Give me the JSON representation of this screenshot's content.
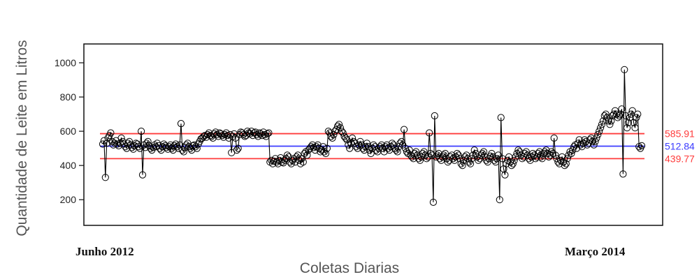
{
  "chart_data": {
    "type": "line",
    "title": "",
    "xlabel": "Coletas Diarias",
    "ylabel": "Quantidade de Leite em Litros",
    "x_range_labels": [
      "Junho 2012",
      "Março 2014"
    ],
    "yticks": [
      200,
      400,
      600,
      800,
      1000
    ],
    "ylim": [
      50,
      1110
    ],
    "grid": false,
    "series": [
      {
        "color": "#000000",
        "marker": "open-circle",
        "values": [
          525,
          545,
          330,
          530,
          560,
          575,
          590,
          540,
          520,
          530,
          545,
          525,
          515,
          530,
          560,
          540,
          525,
          510,
          500,
          530,
          540,
          520,
          505,
          495,
          515,
          530,
          525,
          510,
          500,
          600,
          345,
          520,
          505,
          530,
          540,
          515,
          500,
          490,
          505,
          520,
          510,
          530,
          515,
          500,
          490,
          510,
          525,
          515,
          505,
          495,
          510,
          520,
          500,
          490,
          515,
          525,
          510,
          500,
          520,
          645,
          490,
          480,
          505,
          520,
          530,
          510,
          500,
          490,
          515,
          520,
          510,
          500,
          525,
          540,
          555,
          560,
          570,
          575,
          565,
          580,
          590,
          575,
          570,
          560,
          585,
          595,
          580,
          570,
          590,
          585,
          575,
          565,
          580,
          590,
          575,
          560,
          580,
          475,
          570,
          585,
          560,
          490,
          500,
          580,
          595,
          590,
          580,
          570,
          575,
          600,
          590,
          585,
          600,
          575,
          590,
          595,
          580,
          570,
          590,
          585,
          575,
          595,
          580,
          570,
          585,
          590,
          420,
          430,
          410,
          425,
          440,
          420,
          410,
          430,
          445,
          420,
          415,
          430,
          440,
          460,
          450,
          420,
          410,
          430,
          440,
          420,
          450,
          460,
          430,
          410,
          440,
          420,
          470,
          480,
          460,
          490,
          500,
          510,
          520,
          505,
          490,
          510,
          520,
          500,
          480,
          490,
          510,
          480,
          470,
          500,
          600,
          590,
          570,
          560,
          580,
          600,
          610,
          630,
          640,
          620,
          600,
          590,
          570,
          560,
          550,
          520,
          500,
          530,
          560,
          540,
          530,
          510,
          500,
          520,
          540,
          520,
          500,
          490,
          510,
          530,
          510,
          490,
          470,
          500,
          520,
          510,
          490,
          480,
          500,
          510,
          520,
          500,
          480,
          510,
          520,
          500,
          490,
          510,
          530,
          520,
          500,
          490,
          480,
          510,
          530,
          540,
          520,
          610,
          500,
          480,
          470,
          490,
          460,
          450,
          440,
          470,
          480,
          460,
          440,
          430,
          450,
          470,
          480,
          460,
          440,
          450,
          590,
          470,
          460,
          185,
          690,
          450,
          460,
          470,
          440,
          430,
          450,
          460,
          470,
          440,
          420,
          430,
          450,
          460,
          440,
          430,
          450,
          470,
          460,
          440,
          410,
          400,
          430,
          450,
          460,
          440,
          420,
          410,
          440,
          460,
          490,
          470,
          450,
          430,
          440,
          460,
          470,
          480,
          450,
          430,
          420,
          440,
          455,
          470,
          450,
          430,
          420,
          440,
          460,
          200,
          680,
          440,
          380,
          345,
          410,
          430,
          450,
          420,
          400,
          410,
          430,
          450,
          470,
          490,
          480,
          460,
          440,
          450,
          470,
          480,
          460,
          440,
          430,
          450,
          470,
          460,
          440,
          450,
          470,
          480,
          450,
          440,
          470,
          480,
          490,
          470,
          450,
          460,
          480,
          470,
          560,
          460,
          440,
          420,
          410,
          430,
          450,
          420,
          400,
          410,
          440,
          460,
          480,
          470,
          490,
          510,
          520,
          500,
          530,
          550,
          520,
          510,
          530,
          550,
          540,
          520,
          530,
          550,
          560,
          540,
          520,
          540,
          560,
          580,
          600,
          620,
          640,
          660,
          690,
          700,
          680,
          660,
          640,
          660,
          690,
          700,
          720,
          700,
          680,
          690,
          700,
          730,
          350,
          960,
          690,
          620,
          650,
          680,
          700,
          720,
          650,
          620,
          680,
          700,
          510,
          500,
          515
        ]
      }
    ],
    "reference_lines": [
      {
        "value": 585.91,
        "label": "585.91",
        "color": "#ff3b3b"
      },
      {
        "value": 512.84,
        "label": "512.84",
        "color": "#3b3bff"
      },
      {
        "value": 439.77,
        "label": "439.77",
        "color": "#ff3b3b"
      }
    ]
  }
}
